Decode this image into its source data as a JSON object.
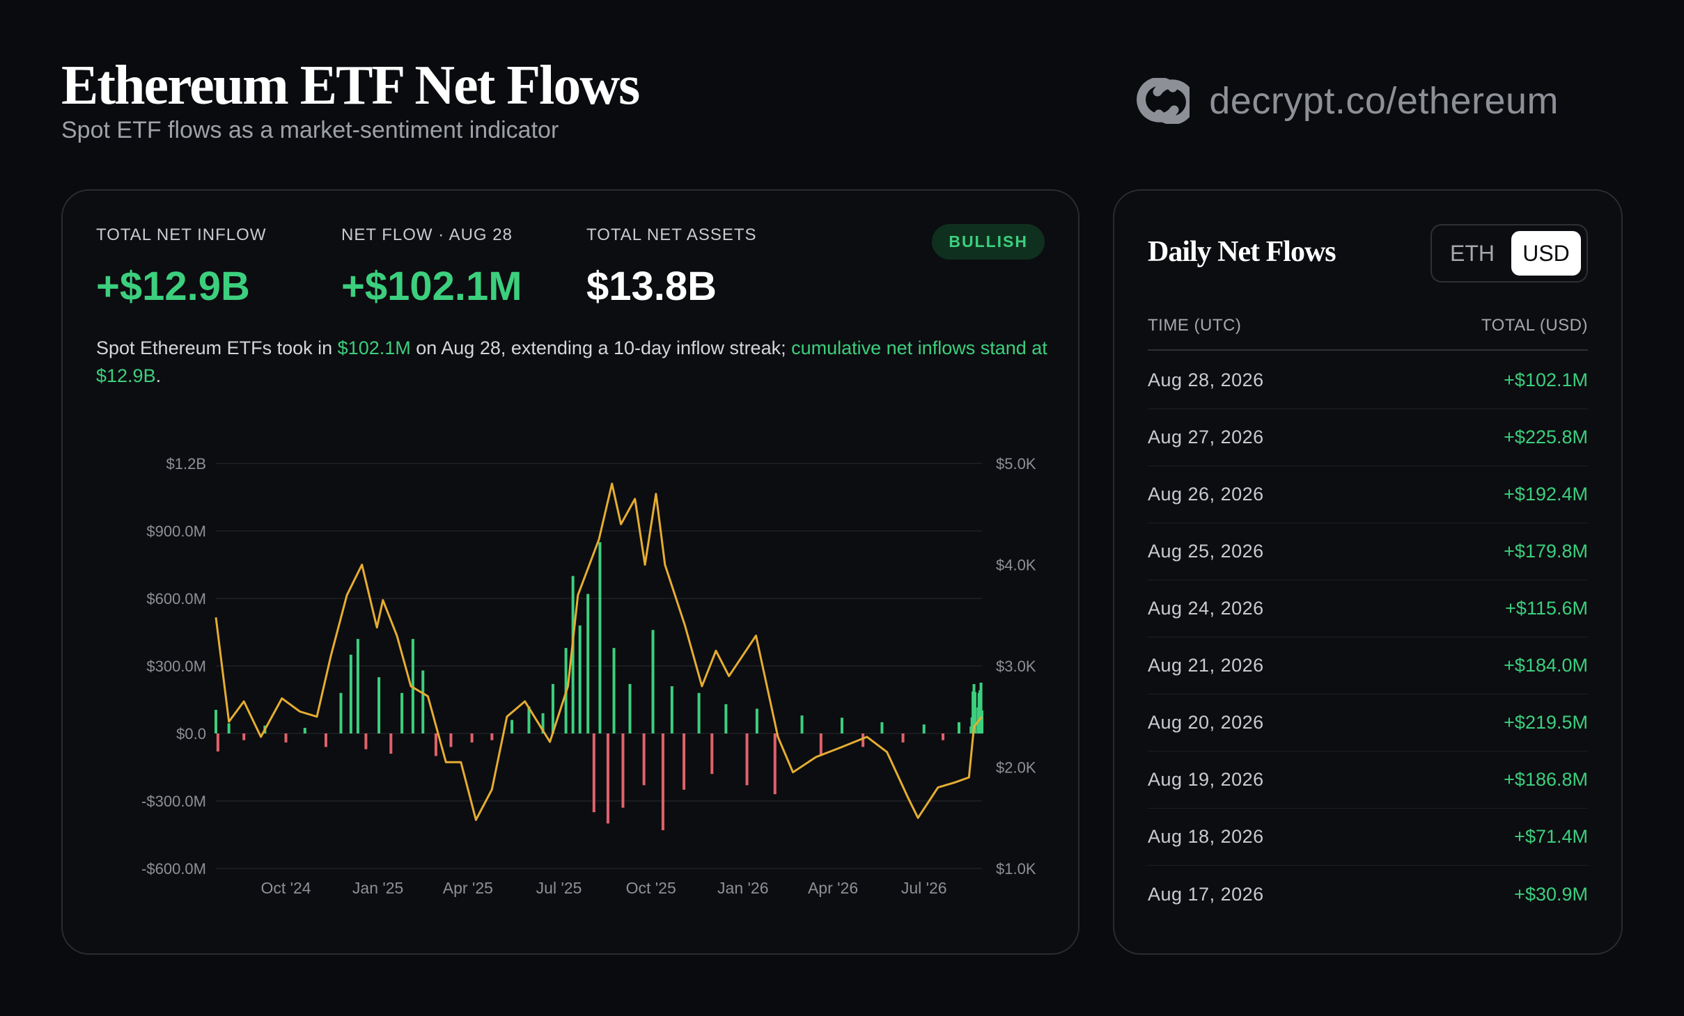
{
  "header": {
    "title": "Ethereum ETF Net Flows",
    "subtitle": "Spot ETF flows as a market-sentiment indicator",
    "brand": "decrypt.co/ethereum",
    "brand_icon": "decrypt-logo-icon"
  },
  "metrics": {
    "total_inflow_label": "TOTAL NET INFLOW",
    "total_inflow_value": "+$12.9B",
    "net_flow_label": "NET FLOW · AUG 28",
    "net_flow_value": "+$102.1M",
    "assets_label": "TOTAL NET ASSETS",
    "assets_value": "$13.8B",
    "badge": "BULLISH"
  },
  "summary": {
    "p1": "Spot Ethereum ETFs took in ",
    "h1": "$102.1M",
    "p2": " on Aug 28, extending a 10-day inflow streak; ",
    "h2": "cumulative net inflows stand at $12.9B",
    "p3": "."
  },
  "colors": {
    "positive": "#3ccf7e",
    "negative": "#e0626b",
    "price_line": "#e5ad32",
    "background": "#0a0b0e"
  },
  "chart_data": {
    "type": "bar",
    "overlay": "line",
    "title": "",
    "xlabel": "",
    "ylabel": "",
    "grid": true,
    "legend": "none",
    "ylim": [
      -600000000,
      1200000000
    ],
    "y2lim": [
      1000,
      5000
    ],
    "yticks": [
      "$1.2B",
      "$900.0M",
      "$600.0M",
      "$300.0M",
      "$0.0",
      "-$300.0M",
      "-$600.0M"
    ],
    "y2ticks": [
      "$5.0K",
      "$4.0K",
      "$3.0K",
      "$2.0K",
      "$1.0K"
    ],
    "xticks": [
      {
        "label": "Oct '24",
        "date": "2024-10-01"
      },
      {
        "label": "Jan '25",
        "date": "2025-01-01"
      },
      {
        "label": "Apr '25",
        "date": "2025-04-01"
      },
      {
        "label": "Jul '25",
        "date": "2025-07-01"
      },
      {
        "label": "Oct '25",
        "date": "2025-10-01"
      },
      {
        "label": "Jan '26",
        "date": "2026-01-01"
      },
      {
        "label": "Apr '26",
        "date": "2026-04-01"
      },
      {
        "label": "Jul '26",
        "date": "2026-07-01"
      }
    ],
    "x_range": [
      "2024-07-23",
      "2026-08-28"
    ],
    "price_series": [
      {
        "date": "2024-07-23",
        "value": 3480
      },
      {
        "date": "2024-08-05",
        "value": 2450
      },
      {
        "date": "2024-08-20",
        "value": 2650
      },
      {
        "date": "2024-09-06",
        "value": 2300
      },
      {
        "date": "2024-09-27",
        "value": 2680
      },
      {
        "date": "2024-10-15",
        "value": 2550
      },
      {
        "date": "2024-11-01",
        "value": 2500
      },
      {
        "date": "2024-11-15",
        "value": 3100
      },
      {
        "date": "2024-12-01",
        "value": 3700
      },
      {
        "date": "2024-12-16",
        "value": 4000
      },
      {
        "date": "2024-12-31",
        "value": 3380
      },
      {
        "date": "2025-01-06",
        "value": 3650
      },
      {
        "date": "2025-01-20",
        "value": 3300
      },
      {
        "date": "2025-02-03",
        "value": 2800
      },
      {
        "date": "2025-02-20",
        "value": 2700
      },
      {
        "date": "2025-03-10",
        "value": 2050
      },
      {
        "date": "2025-03-25",
        "value": 2050
      },
      {
        "date": "2025-04-09",
        "value": 1480
      },
      {
        "date": "2025-04-25",
        "value": 1780
      },
      {
        "date": "2025-05-10",
        "value": 2500
      },
      {
        "date": "2025-05-28",
        "value": 2650
      },
      {
        "date": "2025-06-22",
        "value": 2250
      },
      {
        "date": "2025-07-10",
        "value": 2800
      },
      {
        "date": "2025-07-20",
        "value": 3700
      },
      {
        "date": "2025-08-10",
        "value": 4250
      },
      {
        "date": "2025-08-23",
        "value": 4800
      },
      {
        "date": "2025-09-01",
        "value": 4400
      },
      {
        "date": "2025-09-15",
        "value": 4650
      },
      {
        "date": "2025-09-25",
        "value": 4000
      },
      {
        "date": "2025-10-06",
        "value": 4700
      },
      {
        "date": "2025-10-15",
        "value": 4000
      },
      {
        "date": "2025-11-04",
        "value": 3400
      },
      {
        "date": "2025-11-21",
        "value": 2800
      },
      {
        "date": "2025-12-05",
        "value": 3150
      },
      {
        "date": "2025-12-18",
        "value": 2900
      },
      {
        "date": "2026-01-14",
        "value": 3300
      },
      {
        "date": "2026-02-05",
        "value": 2300
      },
      {
        "date": "2026-02-20",
        "value": 1950
      },
      {
        "date": "2026-03-15",
        "value": 2100
      },
      {
        "date": "2026-04-10",
        "value": 2200
      },
      {
        "date": "2026-05-05",
        "value": 2300
      },
      {
        "date": "2026-05-25",
        "value": 2150
      },
      {
        "date": "2026-06-15",
        "value": 1700
      },
      {
        "date": "2026-06-25",
        "value": 1500
      },
      {
        "date": "2026-07-15",
        "value": 1800
      },
      {
        "date": "2026-08-01",
        "value": 1850
      },
      {
        "date": "2026-08-15",
        "value": 1900
      },
      {
        "date": "2026-08-20",
        "value": 2400
      },
      {
        "date": "2026-08-28",
        "value": 2500
      }
    ],
    "flow_series": [
      {
        "date": "2024-07-23",
        "value": 105000000
      },
      {
        "date": "2024-07-25",
        "value": -80000000
      },
      {
        "date": "2024-08-05",
        "value": 45000000
      },
      {
        "date": "2024-08-20",
        "value": -30000000
      },
      {
        "date": "2024-09-10",
        "value": 35000000
      },
      {
        "date": "2024-10-01",
        "value": -40000000
      },
      {
        "date": "2024-10-20",
        "value": 25000000
      },
      {
        "date": "2024-11-10",
        "value": -60000000
      },
      {
        "date": "2024-11-25",
        "value": 180000000
      },
      {
        "date": "2024-12-05",
        "value": 350000000
      },
      {
        "date": "2024-12-12",
        "value": 420000000
      },
      {
        "date": "2024-12-20",
        "value": -70000000
      },
      {
        "date": "2025-01-02",
        "value": 250000000
      },
      {
        "date": "2025-01-14",
        "value": -90000000
      },
      {
        "date": "2025-01-25",
        "value": 180000000
      },
      {
        "date": "2025-02-05",
        "value": 420000000
      },
      {
        "date": "2025-02-15",
        "value": 280000000
      },
      {
        "date": "2025-02-28",
        "value": -100000000
      },
      {
        "date": "2025-03-15",
        "value": -60000000
      },
      {
        "date": "2025-04-05",
        "value": -40000000
      },
      {
        "date": "2025-04-25",
        "value": -30000000
      },
      {
        "date": "2025-05-15",
        "value": 60000000
      },
      {
        "date": "2025-06-01",
        "value": 120000000
      },
      {
        "date": "2025-06-15",
        "value": 90000000
      },
      {
        "date": "2025-06-25",
        "value": 220000000
      },
      {
        "date": "2025-07-08",
        "value": 380000000
      },
      {
        "date": "2025-07-15",
        "value": 700000000
      },
      {
        "date": "2025-07-22",
        "value": 480000000
      },
      {
        "date": "2025-07-30",
        "value": 620000000
      },
      {
        "date": "2025-08-05",
        "value": -350000000
      },
      {
        "date": "2025-08-11",
        "value": 850000000
      },
      {
        "date": "2025-08-19",
        "value": -400000000
      },
      {
        "date": "2025-08-25",
        "value": 380000000
      },
      {
        "date": "2025-09-03",
        "value": -330000000
      },
      {
        "date": "2025-09-10",
        "value": 220000000
      },
      {
        "date": "2025-09-24",
        "value": -230000000
      },
      {
        "date": "2025-10-03",
        "value": 460000000
      },
      {
        "date": "2025-10-13",
        "value": -430000000
      },
      {
        "date": "2025-10-22",
        "value": 210000000
      },
      {
        "date": "2025-11-03",
        "value": -250000000
      },
      {
        "date": "2025-11-18",
        "value": 180000000
      },
      {
        "date": "2025-12-01",
        "value": -180000000
      },
      {
        "date": "2025-12-15",
        "value": 130000000
      },
      {
        "date": "2026-01-05",
        "value": -230000000
      },
      {
        "date": "2026-01-15",
        "value": 110000000
      },
      {
        "date": "2026-02-02",
        "value": -270000000
      },
      {
        "date": "2026-03-01",
        "value": 80000000
      },
      {
        "date": "2026-03-20",
        "value": -100000000
      },
      {
        "date": "2026-04-10",
        "value": 70000000
      },
      {
        "date": "2026-05-01",
        "value": -60000000
      },
      {
        "date": "2026-05-20",
        "value": 50000000
      },
      {
        "date": "2026-06-10",
        "value": -40000000
      },
      {
        "date": "2026-07-01",
        "value": 40000000
      },
      {
        "date": "2026-07-20",
        "value": -30000000
      },
      {
        "date": "2026-08-05",
        "value": 50000000
      },
      {
        "date": "2026-08-17",
        "value": 30900000
      },
      {
        "date": "2026-08-18",
        "value": 71400000
      },
      {
        "date": "2026-08-19",
        "value": 186800000
      },
      {
        "date": "2026-08-20",
        "value": 219500000
      },
      {
        "date": "2026-08-21",
        "value": 184000000
      },
      {
        "date": "2026-08-24",
        "value": 115600000
      },
      {
        "date": "2026-08-25",
        "value": 179800000
      },
      {
        "date": "2026-08-26",
        "value": 192400000
      },
      {
        "date": "2026-08-27",
        "value": 225800000
      },
      {
        "date": "2026-08-28",
        "value": 102100000
      }
    ]
  },
  "sidebar": {
    "title": "Daily Net Flows",
    "toggle": [
      "ETH",
      "USD"
    ],
    "toggle_active": "USD",
    "col_time": "TIME (UTC)",
    "col_total": "TOTAL (USD)",
    "rows": [
      {
        "date": "Aug 28, 2026",
        "value": "+$102.1M"
      },
      {
        "date": "Aug 27, 2026",
        "value": "+$225.8M"
      },
      {
        "date": "Aug 26, 2026",
        "value": "+$192.4M"
      },
      {
        "date": "Aug 25, 2026",
        "value": "+$179.8M"
      },
      {
        "date": "Aug 24, 2026",
        "value": "+$115.6M"
      },
      {
        "date": "Aug 21, 2026",
        "value": "+$184.0M"
      },
      {
        "date": "Aug 20, 2026",
        "value": "+$219.5M"
      },
      {
        "date": "Aug 19, 2026",
        "value": "+$186.8M"
      },
      {
        "date": "Aug 18, 2026",
        "value": "+$71.4M"
      },
      {
        "date": "Aug 17, 2026",
        "value": "+$30.9M"
      }
    ]
  }
}
